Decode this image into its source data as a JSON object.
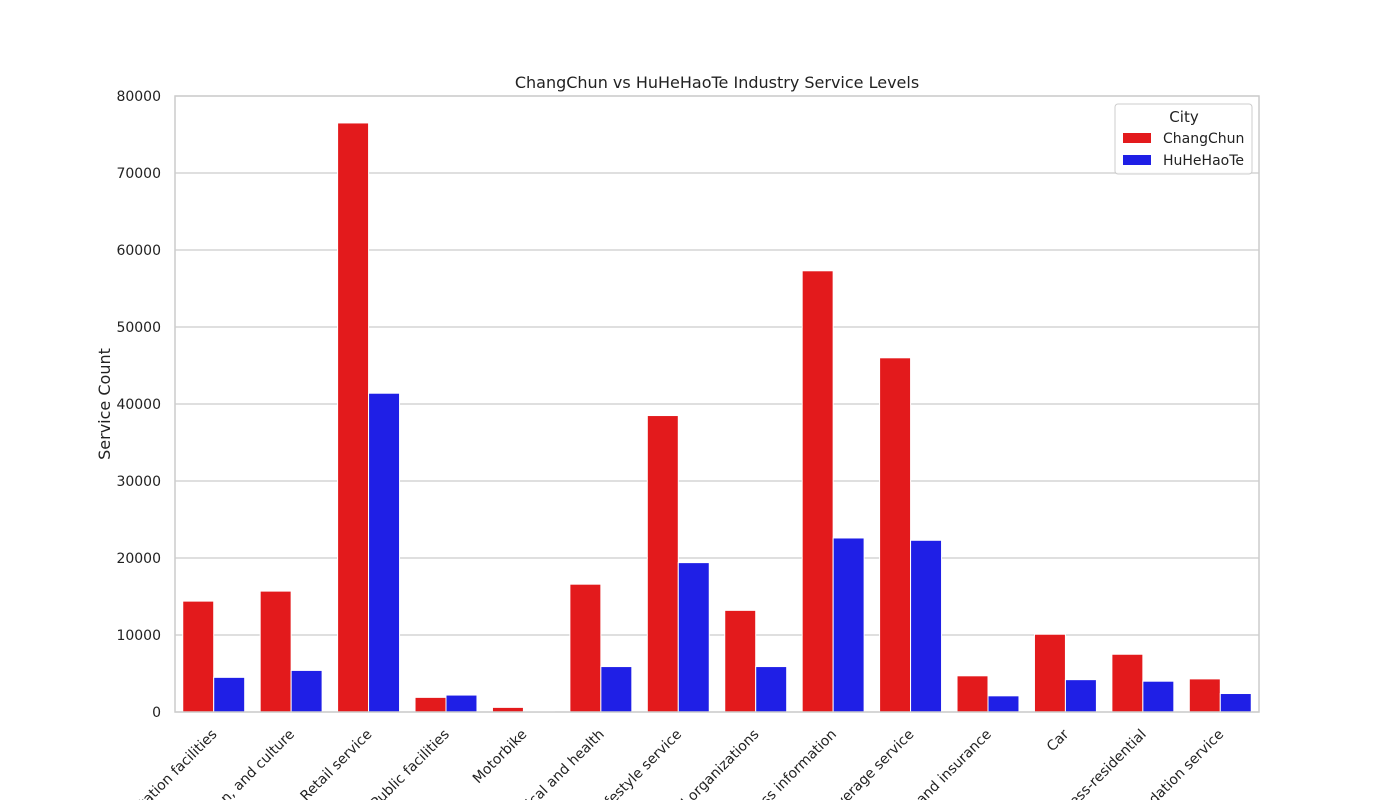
{
  "chart_data": {
    "type": "bar",
    "title": "ChangChun vs HuHeHaoTe Industry Service Levels",
    "xlabel": "",
    "ylabel": "Service Count",
    "ylim": [
      0,
      80000
    ],
    "yticks": [
      0,
      10000,
      20000,
      30000,
      40000,
      50000,
      60000,
      70000,
      80000
    ],
    "grid": true,
    "legend": {
      "title": "City",
      "position": "top-right"
    },
    "categories": [
      "Transportation facilities",
      "Education, and culture",
      "Retail service",
      "Public facilities",
      "Motorbike",
      "Medical and health",
      "Lifestyle service",
      "Social organizations",
      "Business information",
      "Food and beverage service",
      "Finance and insurance",
      "Car",
      "Business-residential",
      "Accommodation service"
    ],
    "tick_labels": [
      "rtation facilities",
      "ion, and culture",
      "Retail service",
      "Public facilities",
      "Motorbike",
      "lical and health",
      "ifestyle service",
      "l organizations",
      "ess information",
      "verage service",
      "and insurance",
      "Car",
      "ess-residential",
      "odation service"
    ],
    "series": [
      {
        "name": "ChangChun",
        "color": "#e31a1c",
        "values": [
          14400,
          15700,
          76500,
          1900,
          600,
          16600,
          38500,
          13200,
          57300,
          46000,
          4700,
          10100,
          7500,
          4300
        ]
      },
      {
        "name": "HuHeHaoTe",
        "color": "#1f1fe6",
        "values": [
          4500,
          5400,
          41400,
          2200,
          100,
          5900,
          19400,
          5900,
          22600,
          22300,
          2100,
          4200,
          4000,
          2400
        ]
      }
    ]
  }
}
